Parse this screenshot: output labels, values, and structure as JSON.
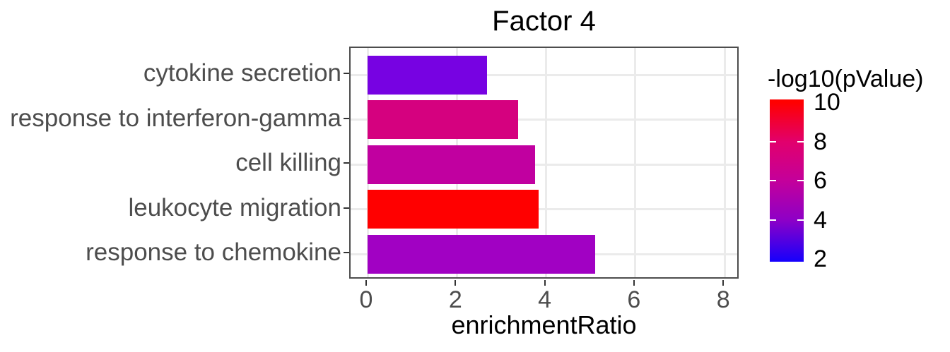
{
  "chart_data": {
    "type": "bar",
    "orientation": "horizontal",
    "title": "Factor 4",
    "xlabel": "enrichmentRatio",
    "categories": [
      "cytokine secretion",
      "response to interferon-gamma",
      "cell killing",
      "leukocyte migration",
      "response to chemokine"
    ],
    "values": [
      2.67,
      3.38,
      3.75,
      3.84,
      5.1
    ],
    "bar_colors": [
      "#7702E2",
      "#D5017F",
      "#C100A0",
      "#FF0000",
      "#A101C3"
    ],
    "color_values_neglog10_pvalue": [
      3.6,
      7.4,
      6.3,
      10.0,
      5.1
    ],
    "x_ticks": [
      0,
      2,
      4,
      6,
      8
    ],
    "xlim": [
      -0.4,
      8.35
    ],
    "grid": true,
    "legend": {
      "title": "-log10(pValue)",
      "position": "right",
      "type": "colorbar",
      "range": [
        2,
        10
      ],
      "ticks": [
        10,
        8,
        6,
        4,
        2
      ],
      "tick_colors_top_to_bottom": [
        "#FF0000",
        "#E2006C",
        "#C4009B",
        "#8E00C6",
        "#1E00F8"
      ],
      "white_tick_marks_at": [
        8,
        6,
        4
      ]
    }
  },
  "colors": {
    "background": "#FFFFFF",
    "panel_border": "#4D4D4D",
    "grid": "#EBEBEB",
    "axis_text": "#4D4D4D",
    "tick_mark": "#333333",
    "title_text": "#000000",
    "legend_tick": "#FFFFFF"
  }
}
